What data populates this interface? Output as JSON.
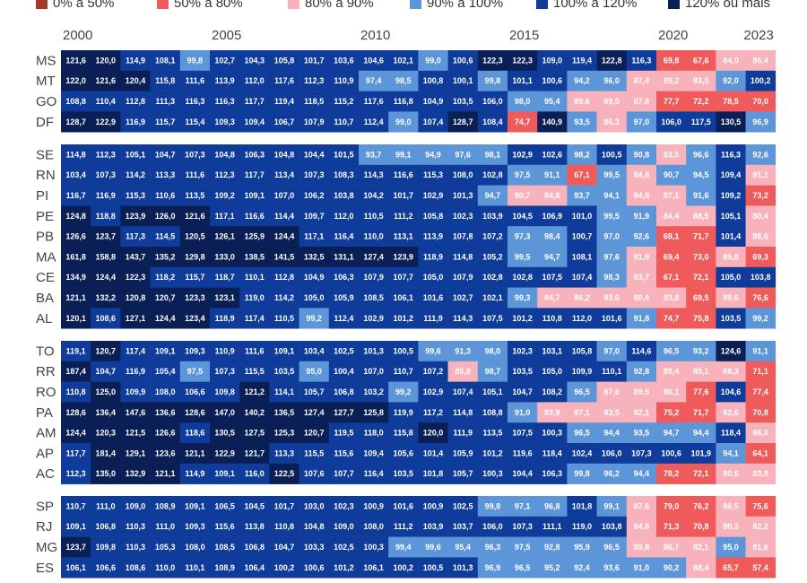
{
  "legend": [
    {
      "label": "0% a 50%",
      "color": "#a23a2a"
    },
    {
      "label": "50%  a 80%",
      "color": "#ef5b5b"
    },
    {
      "label": "80% a 90%",
      "color": "#f8b2bb"
    },
    {
      "label": "90% a 100%",
      "color": "#5d96d8"
    },
    {
      "label": "100% a 120%",
      "color": "#0f3c9a"
    },
    {
      "label": "120% ou mais",
      "color": "#0a1f55"
    }
  ],
  "chart_data": {
    "type": "heatmap",
    "x": [
      2000,
      2001,
      2002,
      2003,
      2004,
      2005,
      2006,
      2007,
      2008,
      2009,
      2010,
      2011,
      2012,
      2013,
      2014,
      2015,
      2016,
      2017,
      2018,
      2019,
      2020,
      2021,
      2022,
      2023
    ],
    "year_labels": [
      "2000",
      "2005",
      "2010",
      "2015",
      "2020",
      "2023"
    ],
    "groups": [
      {
        "rows": [
          {
            "state": "MS",
            "values": [
              121.6,
              120.0,
              114.9,
              108.1,
              99.8,
              102.7,
              104.3,
              105.8,
              101.7,
              103.6,
              104.6,
              102.1,
              99.0,
              100.6,
              122.3,
              122.3,
              109.0,
              119.4,
              122.8,
              116.3,
              69.8,
              67.6,
              84.0,
              86.4
            ]
          },
          {
            "state": "MT",
            "values": [
              122.0,
              121.6,
              120.4,
              115.8,
              111.6,
              113.9,
              112.0,
              117.6,
              112.3,
              110.9,
              97.4,
              98.5,
              100.8,
              100.1,
              99.8,
              101.1,
              100.6,
              94.2,
              96.0,
              87.4,
              85.2,
              83.0,
              92.0,
              100.2
            ]
          },
          {
            "state": "GO",
            "values": [
              108.8,
              110.4,
              112.8,
              111.3,
              116.3,
              116.3,
              117.7,
              119.4,
              118.5,
              115.2,
              117.6,
              116.8,
              104.9,
              103.5,
              106.0,
              98.0,
              95.4,
              89.6,
              89.5,
              87.8,
              77.7,
              72.2,
              78.5,
              70.0
            ]
          },
          {
            "state": "DF",
            "values": [
              128.7,
              122.9,
              116.9,
              115.7,
              115.4,
              109.3,
              109.4,
              106.7,
              107.9,
              110.7,
              112.4,
              99.0,
              107.4,
              128.7,
              108.4,
              74.7,
              140.9,
              93.5,
              86.3,
              97.0,
              106.0,
              117.5,
              130.5,
              96.9
            ]
          }
        ]
      },
      {
        "rows": [
          {
            "state": "SE",
            "values": [
              114.8,
              112.3,
              105.1,
              104.7,
              107.3,
              104.8,
              106.3,
              104.8,
              104.4,
              101.5,
              93.7,
              99.1,
              94.9,
              97.6,
              98.1,
              102.9,
              102.6,
              98.2,
              100.5,
              90.8,
              83.5,
              96.6,
              116.3,
              92.6
            ]
          },
          {
            "state": "RN",
            "values": [
              103.4,
              107.3,
              114.2,
              113.3,
              111.6,
              112.3,
              117.7,
              113.4,
              107.3,
              108.3,
              114.3,
              116.6,
              115.3,
              108.0,
              102.8,
              97.5,
              91.1,
              67.1,
              99.5,
              84.8,
              90.7,
              94.5,
              109.4,
              81.1
            ]
          },
          {
            "state": "PI",
            "values": [
              116.7,
              116.9,
              115.3,
              110.6,
              113.5,
              109.2,
              109.1,
              107.0,
              106.2,
              103.8,
              104.2,
              101.7,
              102.9,
              101.3,
              94.7,
              80.7,
              84.8,
              93.7,
              94.1,
              84.8,
              87.1,
              91.6,
              109.2,
              73.2
            ]
          },
          {
            "state": "PE",
            "values": [
              124.8,
              118.8,
              123.9,
              126.0,
              121.6,
              117.1,
              116.6,
              114.4,
              109.7,
              112.0,
              110.5,
              111.2,
              105.8,
              102.3,
              103.9,
              104.5,
              106.9,
              101.0,
              99.5,
              91.9,
              84.4,
              88.5,
              105.1,
              80.4
            ]
          },
          {
            "state": "PB",
            "values": [
              126.6,
              123.7,
              117.3,
              114.5,
              120.5,
              126.1,
              125.9,
              124.4,
              117.1,
              116.4,
              110.0,
              113.1,
              113.9,
              107.8,
              107.2,
              97.3,
              98.4,
              100.7,
              97.0,
              92.6,
              68.1,
              71.7,
              101.4,
              88.6
            ]
          },
          {
            "state": "MA",
            "values": [
              161.8,
              158.8,
              143.7,
              135.2,
              129.8,
              133.0,
              138.5,
              141.5,
              132.5,
              131.1,
              127.4,
              123.9,
              118.9,
              114.8,
              105.2,
              99.5,
              94.7,
              108.1,
              97.6,
              81.9,
              69.4,
              73.0,
              85.8,
              69.3
            ]
          },
          {
            "state": "CE",
            "values": [
              134.9,
              124.4,
              122.3,
              118.2,
              115.7,
              118.7,
              110.1,
              112.8,
              104.9,
              106.3,
              107.9,
              107.7,
              105.0,
              107.9,
              102.8,
              102.8,
              107.5,
              107.4,
              98.3,
              83.7,
              67.1,
              72.1,
              105.0,
              103.8
            ]
          },
          {
            "state": "BA",
            "values": [
              121.1,
              132.2,
              120.8,
              120.7,
              123.3,
              123.1,
              119.0,
              114.2,
              105.0,
              105.9,
              108.5,
              106.1,
              101.6,
              102.7,
              102.1,
              99.3,
              84.7,
              86.2,
              83.0,
              80.4,
              83.8,
              69.5,
              89.6,
              76.6
            ]
          },
          {
            "state": "AL",
            "values": [
              120.1,
              108.6,
              127.1,
              124.4,
              123.4,
              118.9,
              117.4,
              110.5,
              99.2,
              112.4,
              102.9,
              101.2,
              111.9,
              114.3,
              107.5,
              101.2,
              110.8,
              112.0,
              101.6,
              91.8,
              74.7,
              75.8,
              103.5,
              99.2
            ]
          }
        ]
      },
      {
        "rows": [
          {
            "state": "TO",
            "values": [
              119.1,
              120.7,
              117.4,
              109.1,
              109.3,
              110.9,
              111.6,
              109.1,
              103.4,
              102.5,
              101.3,
              100.5,
              99.6,
              91.3,
              98.0,
              102.3,
              103.1,
              105.8,
              97.0,
              114.6,
              96.5,
              93.2,
              124.6,
              91.1
            ]
          },
          {
            "state": "RR",
            "values": [
              187.4,
              104.7,
              116.9,
              105.4,
              97.5,
              107.3,
              115.5,
              103.5,
              95.0,
              100.4,
              107.0,
              110.7,
              107.2,
              85.8,
              98.7,
              103.5,
              105.0,
              109.9,
              110.1,
              92.8,
              85.4,
              85.1,
              88.3,
              71.1
            ]
          },
          {
            "state": "RO",
            "values": [
              110.8,
              125.0,
              109.9,
              108.0,
              106.6,
              109.8,
              121.2,
              114.1,
              105.7,
              106.8,
              103.2,
              99.2,
              102.9,
              107.4,
              105.1,
              104.7,
              108.2,
              96.5,
              87.6,
              89.5,
              80.1,
              77.6,
              104.6,
              77.4
            ]
          },
          {
            "state": "PA",
            "values": [
              128.6,
              136.4,
              147.6,
              136.6,
              128.6,
              147.0,
              140.2,
              136.5,
              127.4,
              127.7,
              125.8,
              119.9,
              117.2,
              114.8,
              108.8,
              91.0,
              83.9,
              87.1,
              83.5,
              82.1,
              75.2,
              71.7,
              82.6,
              70.8
            ]
          },
          {
            "state": "AM",
            "values": [
              124.4,
              120.3,
              121.5,
              126.6,
              118.6,
              130.5,
              127.5,
              125.3,
              120.7,
              119.5,
              118.0,
              115.8,
              120.0,
              111.9,
              113.5,
              107.5,
              100.3,
              96.5,
              94.4,
              93.5,
              94.7,
              94.4,
              118.4,
              86.0
            ]
          },
          {
            "state": "AP",
            "values": [
              117.7,
              181.4,
              129.1,
              123.6,
              121.1,
              122.9,
              121.7,
              113.3,
              115.5,
              115.6,
              109.4,
              105.6,
              101.4,
              105.9,
              101.2,
              119.6,
              118.4,
              102.4,
              106.0,
              107.3,
              100.6,
              101.9,
              94.1,
              64.1
            ]
          },
          {
            "state": "AC",
            "values": [
              112.3,
              135.0,
              132.9,
              121.1,
              114.9,
              109.1,
              116.0,
              122.5,
              107.6,
              107.7,
              116.4,
              103.5,
              101.8,
              105.7,
              100.3,
              104.4,
              106.3,
              99.8,
              96.2,
              94.4,
              78.2,
              72.1,
              80.6,
              83.9
            ]
          }
        ]
      },
      {
        "rows": [
          {
            "state": "SP",
            "values": [
              110.7,
              111.0,
              109.0,
              108.9,
              109.1,
              106.5,
              104.5,
              101.7,
              103.0,
              102.3,
              100.9,
              101.6,
              100.9,
              102.5,
              99.8,
              97.1,
              96.8,
              101.8,
              99.1,
              87.6,
              79.0,
              76.2,
              86.5,
              75.6
            ]
          },
          {
            "state": "RJ",
            "values": [
              109.1,
              106.8,
              110.3,
              111.0,
              109.3,
              115.6,
              113.8,
              110.8,
              104.8,
              109.0,
              108.0,
              111.2,
              103.9,
              103.7,
              106.0,
              107.3,
              111.1,
              119.0,
              103.8,
              84.8,
              71.3,
              70.8,
              80.3,
              82.2
            ]
          },
          {
            "state": "MG",
            "values": [
              123.7,
              109.8,
              110.3,
              105.3,
              108.0,
              108.5,
              106.8,
              104.7,
              103.3,
              102.5,
              100.3,
              99.4,
              99.6,
              95.4,
              96.3,
              97.5,
              92.8,
              95.9,
              96.5,
              89.8,
              86.7,
              82.1,
              95.0,
              81.6
            ]
          },
          {
            "state": "ES",
            "values": [
              106.1,
              106.6,
              108.6,
              110.0,
              110.1,
              108.9,
              106.4,
              100.2,
              100.6,
              101.2,
              106.1,
              100.2,
              100.5,
              101.3,
              96.9,
              96.5,
              95.2,
              92.4,
              93.6,
              91.0,
              90.2,
              88.4,
              65.7,
              57.4
            ]
          }
        ]
      }
    ]
  }
}
